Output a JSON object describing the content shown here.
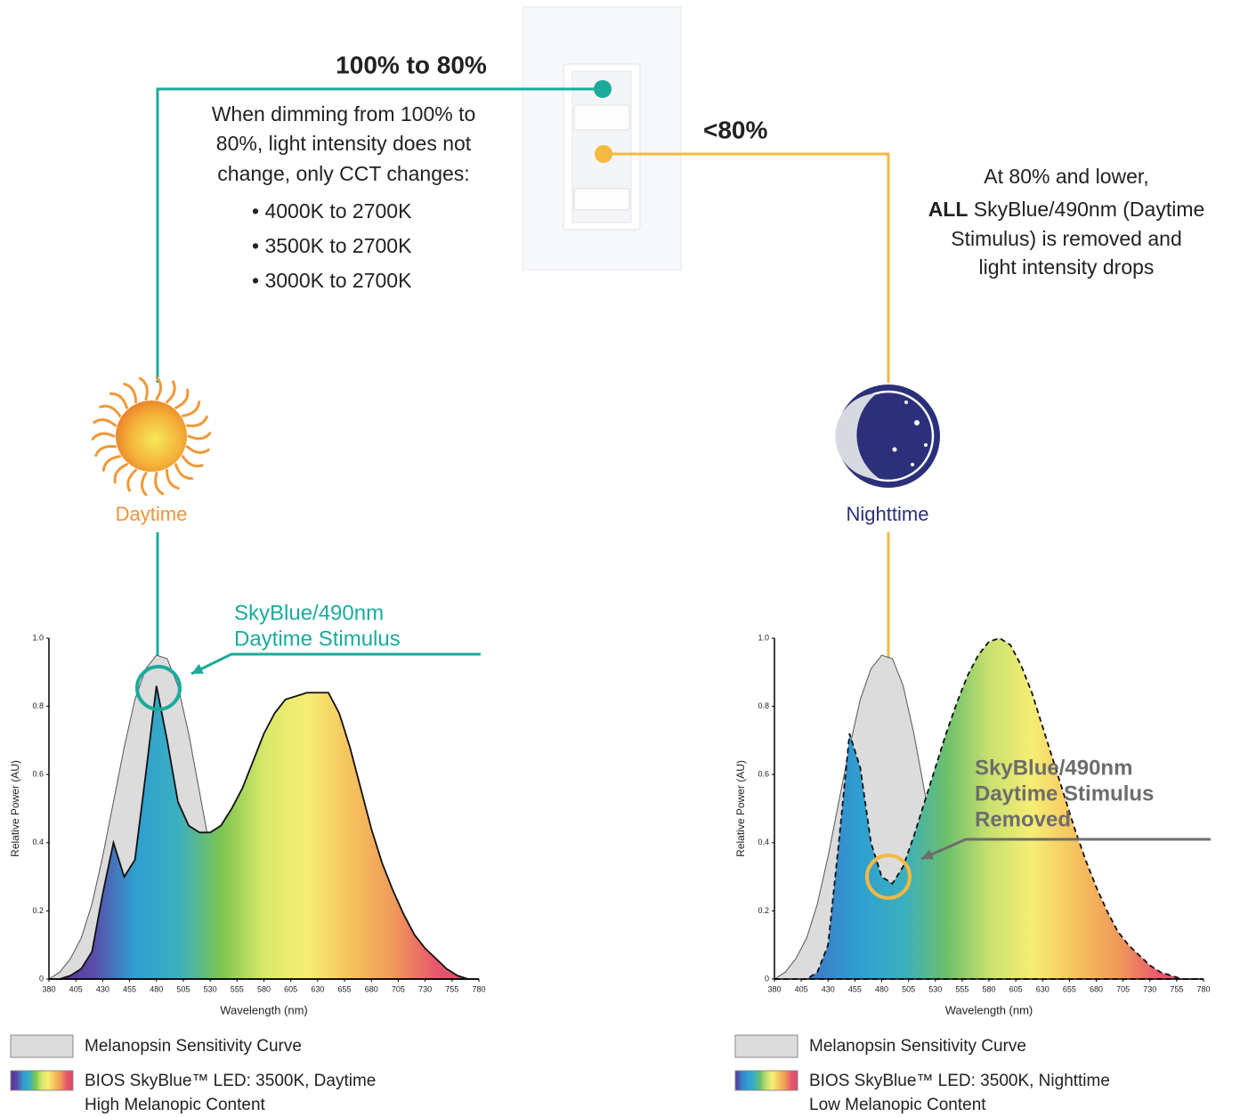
{
  "top_title": "100% to 80%",
  "top_body": [
    "When dimming from 100% to",
    "80%, light intensity does not",
    "change, only CCT changes:"
  ],
  "top_bullets": [
    "• 4000K to 2700K",
    "• 3500K to 2700K",
    "• 3000K to 2700K"
  ],
  "right_title": "<80%",
  "right_body": {
    "line1": "At 80% and lower,",
    "emphasis": "ALL",
    "line2": "SkyBlue/490nm (Daytime",
    "line3": "Stimulus) is removed and",
    "line4": "light intensity drops"
  },
  "day_label": "Daytime",
  "night_label": "Nighttime",
  "chart_data": [
    {
      "type": "area",
      "x": [
        380,
        390,
        400,
        410,
        420,
        430,
        440,
        450,
        460,
        470,
        480,
        490,
        500,
        510,
        520,
        530,
        540,
        550,
        560,
        570,
        580,
        590,
        600,
        610,
        620,
        630,
        640,
        650,
        660,
        670,
        680,
        690,
        700,
        710,
        720,
        730,
        740,
        750,
        760,
        770,
        780
      ],
      "series": [
        {
          "name": "Melanopsin Sensitivity Curve",
          "color": "#dcdcdd",
          "values": [
            0,
            0.02,
            0.06,
            0.12,
            0.22,
            0.36,
            0.52,
            0.68,
            0.82,
            0.91,
            0.95,
            0.94,
            0.86,
            0.72,
            0.55,
            0.38,
            0.25,
            0.15,
            0.08,
            0.04,
            0.02,
            0.01,
            0,
            0,
            0,
            0,
            0,
            0,
            0,
            0,
            0,
            0,
            0,
            0,
            0,
            0,
            0,
            0,
            0,
            0,
            0
          ]
        },
        {
          "name": "BIOS SkyBlue™ LED: 3500K, Daytime",
          "description": "High Melanopic Content",
          "colors": [
            "#5b2f8f",
            "#5a4aa8",
            "#2f9fd0",
            "#3aafc0",
            "#7cc450",
            "#d8e86a",
            "#f6ee74",
            "#f6c35e",
            "#f09a5a",
            "#e8576e",
            "#d9486a"
          ],
          "line_style": "solid",
          "values": [
            0,
            0,
            0.01,
            0.03,
            0.08,
            0.25,
            0.4,
            0.3,
            0.35,
            0.6,
            0.86,
            0.7,
            0.52,
            0.45,
            0.43,
            0.43,
            0.45,
            0.5,
            0.56,
            0.64,
            0.72,
            0.78,
            0.82,
            0.83,
            0.84,
            0.84,
            0.84,
            0.78,
            0.68,
            0.56,
            0.44,
            0.34,
            0.26,
            0.19,
            0.13,
            0.09,
            0.06,
            0.03,
            0.01,
            0,
            0
          ]
        }
      ],
      "xlim": [
        380,
        780
      ],
      "xticks": [
        380,
        405,
        430,
        455,
        480,
        505,
        530,
        555,
        580,
        605,
        630,
        655,
        680,
        705,
        730,
        755,
        780
      ],
      "ylim": [
        0,
        1
      ],
      "yticks": [
        0,
        0.2,
        0.4,
        0.6,
        0.8,
        {
          "value": 1,
          "label": "1.0"
        }
      ],
      "xlabel": "Wavelength (nm)",
      "ylabel": "Relative Power (AU)",
      "annotation": {
        "lines": [
          "SkyBlue/490nm",
          "Daytime Stimulus"
        ],
        "color": "#1aab9b"
      }
    },
    {
      "type": "area",
      "x": [
        380,
        390,
        400,
        410,
        420,
        430,
        440,
        450,
        460,
        470,
        480,
        490,
        500,
        510,
        520,
        530,
        540,
        550,
        560,
        570,
        580,
        590,
        600,
        610,
        620,
        630,
        640,
        650,
        660,
        670,
        680,
        690,
        700,
        710,
        720,
        730,
        740,
        750,
        760,
        770,
        780
      ],
      "series": [
        {
          "name": "Melanopsin Sensitivity Curve",
          "color": "#dcdcdd",
          "values": [
            0,
            0.02,
            0.06,
            0.12,
            0.22,
            0.36,
            0.52,
            0.68,
            0.82,
            0.91,
            0.95,
            0.94,
            0.86,
            0.72,
            0.55,
            0.38,
            0.25,
            0.15,
            0.08,
            0.04,
            0.02,
            0.01,
            0,
            0,
            0,
            0,
            0,
            0,
            0,
            0,
            0,
            0,
            0,
            0,
            0,
            0,
            0,
            0,
            0,
            0,
            0
          ]
        },
        {
          "name": "BIOS SkyBlue™ LED: 3500K, Nighttime",
          "description": "Low Melanopic Content",
          "colors": [
            "#5b2f8f",
            "#3a7fc8",
            "#2f9fd0",
            "#3aafc0",
            "#6cbf6a",
            "#c8e070",
            "#f6ee74",
            "#f6c35e",
            "#f09a5a",
            "#e8576e",
            "#d9486a"
          ],
          "line_style": "dashed",
          "values": [
            0,
            0,
            0,
            0,
            0.02,
            0.1,
            0.4,
            0.72,
            0.62,
            0.4,
            0.3,
            0.28,
            0.33,
            0.42,
            0.52,
            0.62,
            0.72,
            0.81,
            0.89,
            0.95,
            0.99,
            1,
            0.98,
            0.92,
            0.84,
            0.74,
            0.64,
            0.54,
            0.44,
            0.35,
            0.27,
            0.2,
            0.14,
            0.1,
            0.07,
            0.04,
            0.02,
            0.01,
            0,
            0,
            0
          ]
        }
      ],
      "xlim": [
        380,
        780
      ],
      "xticks": [
        380,
        405,
        430,
        455,
        480,
        505,
        530,
        555,
        580,
        605,
        630,
        655,
        680,
        705,
        730,
        755,
        780
      ],
      "ylim": [
        0,
        1
      ],
      "yticks": [
        0,
        0.2,
        0.4,
        0.6,
        0.8,
        {
          "value": 1,
          "label": "1.0"
        }
      ],
      "xlabel": "Wavelength (nm)",
      "ylabel": "Relative Power (AU)",
      "annotation": {
        "lines": [
          "SkyBlue/490nm",
          "Daytime Stimulus",
          "Removed"
        ],
        "color": "#6d6d6d"
      }
    }
  ]
}
